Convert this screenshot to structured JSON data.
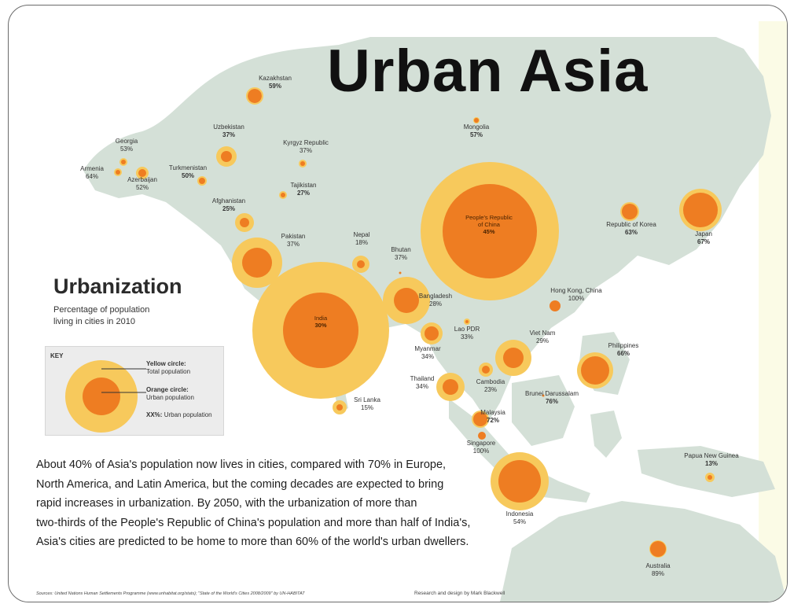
{
  "title": "Urban Asia",
  "urbanization": {
    "heading": "Urbanization",
    "subtitle_line1": "Percentage of population",
    "subtitle_line2": "living in cities in 2010"
  },
  "key": {
    "title": "KEY",
    "yellow_label": "Yellow circle:",
    "yellow_desc": "Total population",
    "orange_label": "Orange circle:",
    "orange_desc": "Urban population",
    "pct_label": "XX%:",
    "pct_desc": "Urban population"
  },
  "paragraph": [
    "About 40% of Asia's population now lives in cities,  compared with 70% in Europe,",
    "North America, and Latin America, but the coming decades are expected to bring",
    "rapid increases in urbanization. By 2050, with the urbanization of more than",
    "two-thirds of the People's Republic of China's population and more than half of India's,",
    "Asia's cities are predicted to be home to more than 60% of the world's urban dwellers."
  ],
  "sources": "Sources: United Nations Human Settlements Programme (www.unhabitat.org/stats); \"State of the World's Cities 2008/2009\" by UN-HABITAT",
  "credit": "Research and design by Mark Blackwell",
  "colors": {
    "land": "#d4e0d7",
    "yellow": "#f7c95c",
    "yellow_inner": "#f9d77b",
    "orange": "#ee7d22"
  },
  "countries": [
    {
      "name": "Kazakhstan",
      "pct": "59%"
    },
    {
      "name": "Georgia",
      "pct": "53%"
    },
    {
      "name": "Armenia",
      "pct": "64%"
    },
    {
      "name": "Azerbaijan",
      "pct": "52%"
    },
    {
      "name": "Uzbekistan",
      "pct": "37%"
    },
    {
      "name": "Turkmenistan",
      "pct": "50%"
    },
    {
      "name": "Kyrgyz Republic",
      "pct": "37%"
    },
    {
      "name": "Tajikistan",
      "pct": "27%"
    },
    {
      "name": "Afghanistan",
      "pct": "25%"
    },
    {
      "name": "Pakistan",
      "pct": "37%"
    },
    {
      "name": "Nepal",
      "pct": "18%"
    },
    {
      "name": "Bhutan",
      "pct": "37%"
    },
    {
      "name": "Mongolia",
      "pct": "57%"
    },
    {
      "name": "People's Republic of China",
      "pct": "45%"
    },
    {
      "name": "Republic of Korea",
      "pct": "63%"
    },
    {
      "name": "Japan",
      "pct": "67%"
    },
    {
      "name": "India",
      "pct": "30%"
    },
    {
      "name": "Bangladesh",
      "pct": "28%"
    },
    {
      "name": "Hong Kong, China",
      "pct": "100%"
    },
    {
      "name": "Lao PDR",
      "pct": "33%"
    },
    {
      "name": "Myanmar",
      "pct": "34%"
    },
    {
      "name": "Viet Nam",
      "pct": "29%"
    },
    {
      "name": "Philippines",
      "pct": "66%"
    },
    {
      "name": "Thailand",
      "pct": "34%"
    },
    {
      "name": "Cambodia",
      "pct": "23%"
    },
    {
      "name": "Sri Lanka",
      "pct": "15%"
    },
    {
      "name": "Brunei Darussalam",
      "pct": "76%"
    },
    {
      "name": "Malaysia",
      "pct": "72%"
    },
    {
      "name": "Singapore",
      "pct": "100%"
    },
    {
      "name": "Indonesia",
      "pct": "54%"
    },
    {
      "name": "Papua New Guinea",
      "pct": "13%"
    },
    {
      "name": "Australia",
      "pct": "89%"
    }
  ]
}
